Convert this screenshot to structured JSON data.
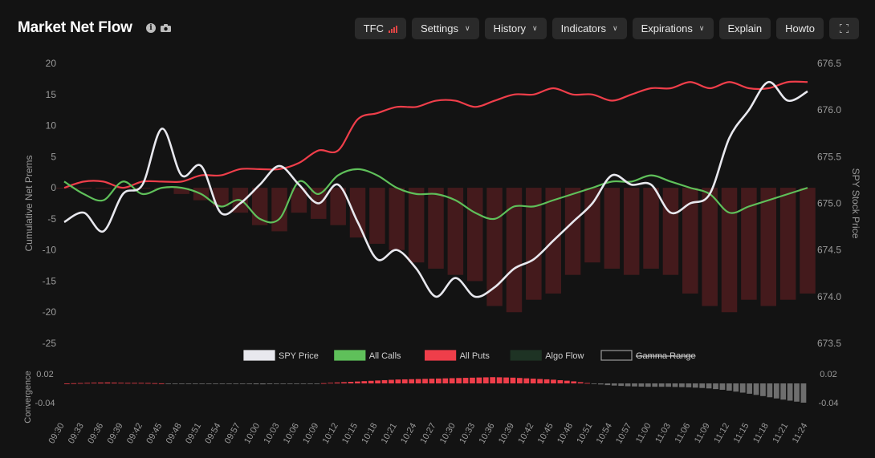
{
  "title": "Market Net Flow",
  "icons": {
    "info": "info-icon",
    "camera": "camera-icon"
  },
  "toolbar": {
    "tfc": "TFC",
    "settings": "Settings",
    "history": "History",
    "indicators": "Indicators",
    "expirations": "Expirations",
    "explain": "Explain",
    "howto": "Howto",
    "fullscreen": "fullscreen-icon"
  },
  "colors": {
    "spy": "#e8e8ee",
    "calls": "#5fc05a",
    "puts": "#ef3e4a",
    "algo": "#4a1c1e",
    "conv_pos": "#ef3e4a",
    "conv_neg": "#6e6e6e"
  },
  "chart_data": [
    {
      "type": "line",
      "xlabel": "",
      "ylabel": "Cumulative Net Prems",
      "y2label": "SPY Stock Price",
      "ylim": [
        -25,
        20
      ],
      "y2lim": [
        673.5,
        676.5
      ],
      "yticks": [
        "20",
        "15",
        "10",
        "5",
        "0",
        "-5",
        "-10",
        "-15",
        "-20",
        "-25"
      ],
      "y2ticks": [
        "676.5",
        "676.0",
        "675.5",
        "675.0",
        "674.5",
        "674.0",
        "673.5"
      ],
      "x": [
        "09:30",
        "09:33",
        "09:36",
        "09:39",
        "09:42",
        "09:45",
        "09:48",
        "09:51",
        "09:54",
        "09:57",
        "10:00",
        "10:03",
        "10:06",
        "10:09",
        "10:12",
        "10:15",
        "10:18",
        "10:21",
        "10:24",
        "10:27",
        "10:30",
        "10:33",
        "10:36",
        "10:39",
        "10:42",
        "10:45",
        "10:48",
        "10:51",
        "10:54",
        "10:57",
        "11:00",
        "11:03",
        "11:06",
        "11:09",
        "11:12",
        "11:15",
        "11:18",
        "11:21",
        "11:24"
      ],
      "legend": [
        "SPY Price",
        "All Calls",
        "All Puts",
        "Algo Flow",
        "Gamma Range"
      ],
      "legend_position": "bottom",
      "series": [
        {
          "name": "SPY Price",
          "axis": "right",
          "values": [
            674.8,
            674.9,
            674.7,
            675.1,
            675.2,
            675.8,
            675.3,
            675.4,
            674.9,
            675.0,
            675.2,
            675.4,
            675.2,
            675.0,
            675.2,
            674.8,
            674.4,
            674.5,
            674.3,
            674.0,
            674.2,
            674.0,
            674.1,
            674.3,
            674.4,
            674.6,
            674.8,
            675.0,
            675.3,
            675.2,
            675.2,
            674.9,
            675.0,
            675.1,
            675.7,
            676.0,
            676.3,
            676.1,
            676.2
          ]
        },
        {
          "name": "All Calls",
          "axis": "left",
          "values": [
            1,
            -1,
            -2,
            1,
            -1,
            0,
            0,
            -1,
            -3,
            -2,
            -5,
            -5,
            1,
            -1,
            2,
            3,
            2,
            0,
            -1,
            -1,
            -2,
            -4,
            -5,
            -3,
            -3,
            -2,
            -1,
            0,
            1,
            1,
            2,
            1,
            0,
            -1,
            -4,
            -3,
            -2,
            -1,
            0
          ]
        },
        {
          "name": "All Puts",
          "axis": "left",
          "values": [
            0,
            1,
            1,
            0,
            1,
            1,
            1,
            2,
            2,
            3,
            3,
            3,
            4,
            6,
            6,
            11,
            12,
            13,
            13,
            14,
            14,
            13,
            14,
            15,
            15,
            16,
            15,
            15,
            14,
            15,
            16,
            16,
            17,
            16,
            17,
            16,
            16,
            17,
            17
          ]
        },
        {
          "name": "Algo Flow",
          "axis": "left",
          "values": [
            0,
            0,
            0,
            0,
            0,
            0,
            -1,
            -2,
            -3,
            -4,
            -6,
            -7,
            -4,
            -5,
            -6,
            -8,
            -9,
            -10,
            -12,
            -13,
            -14,
            -15,
            -19,
            -20,
            -18,
            -17,
            -14,
            -12,
            -13,
            -14,
            -13,
            -14,
            -17,
            -19,
            -20,
            -18,
            -19,
            -18,
            -17
          ]
        }
      ]
    },
    {
      "type": "bar",
      "ylabel": "Convergence",
      "ylim": [
        -0.06,
        0.03
      ],
      "yticks": [
        "0.02",
        "-0.04"
      ],
      "y2ticks": [
        "0.02",
        "-0.04"
      ],
      "x": [
        "09:30",
        "09:33",
        "09:36",
        "09:39",
        "09:42",
        "09:45",
        "09:48",
        "09:51",
        "09:54",
        "09:57",
        "10:00",
        "10:03",
        "10:06",
        "10:09",
        "10:12",
        "10:15",
        "10:18",
        "10:21",
        "10:24",
        "10:27",
        "10:30",
        "10:33",
        "10:36",
        "10:39",
        "10:42",
        "10:45",
        "10:48",
        "10:51",
        "10:54",
        "10:57",
        "11:00",
        "11:03",
        "11:06",
        "11:09",
        "11:12",
        "11:15",
        "11:18",
        "11:21",
        "11:24"
      ],
      "values": [
        0.0,
        0.001,
        0.002,
        0.001,
        0.001,
        0.0,
        -0.001,
        -0.001,
        -0.001,
        -0.001,
        -0.002,
        -0.001,
        -0.001,
        0.0,
        0.002,
        0.004,
        0.006,
        0.008,
        0.009,
        0.01,
        0.011,
        0.012,
        0.013,
        0.012,
        0.01,
        0.008,
        0.005,
        0.0,
        -0.004,
        -0.006,
        -0.007,
        -0.007,
        -0.008,
        -0.01,
        -0.014,
        -0.02,
        -0.027,
        -0.034,
        -0.04
      ]
    }
  ]
}
